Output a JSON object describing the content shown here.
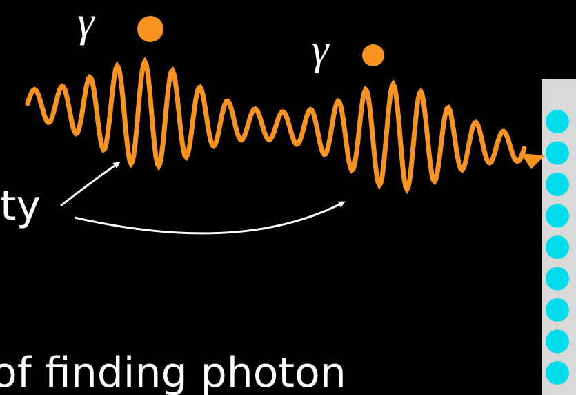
{
  "photons": [
    {
      "symbol": "γ"
    },
    {
      "symbol": "γ"
    }
  ],
  "label_fragment": "ty",
  "caption": "of finding photon"
}
